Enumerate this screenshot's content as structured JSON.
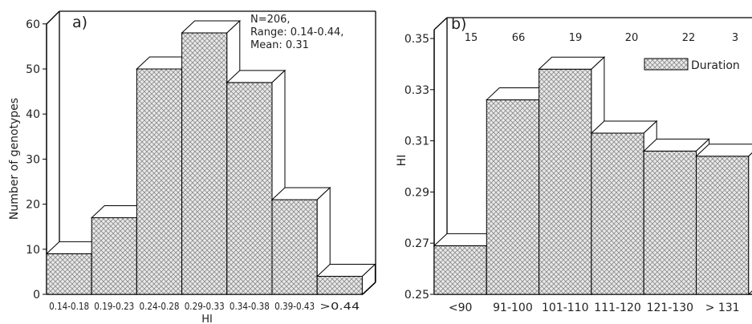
{
  "chart_data": [
    {
      "type": "bar",
      "panel_label": "a)",
      "title": "",
      "xlabel": "HI",
      "ylabel": "Number of genotypes",
      "ylim": [
        0,
        65
      ],
      "yticks": [
        "0",
        "10",
        "20",
        "30",
        "40",
        "50",
        "60"
      ],
      "categories": [
        "0.14-0.18",
        "0.19-0.23",
        "0.24-0.28",
        "0.29-0.33",
        "0.34-0.38",
        "0.39-0.43",
        ">0.44"
      ],
      "values": [
        9,
        17,
        50,
        58,
        47,
        21,
        4
      ],
      "annotation": [
        "N=206,",
        "Range: 0.14-0.44,",
        "Mean: 0.31"
      ],
      "grid": false,
      "style": "3d-bar"
    },
    {
      "type": "bar",
      "panel_label": "b)",
      "title": "",
      "xlabel": "",
      "ylabel": "HI",
      "ylim": [
        0.25,
        0.35
      ],
      "yticks": [
        "0.25",
        "0.27",
        "0.29",
        "0.31",
        "0.33",
        "0.35"
      ],
      "categories": [
        "<90",
        "91-100",
        "101-110",
        "111-120",
        "121-130",
        "> 131"
      ],
      "values": [
        0.269,
        0.326,
        0.338,
        0.313,
        0.306,
        0.304
      ],
      "counts": [
        "15",
        "66",
        "19",
        "20",
        "22",
        "3"
      ],
      "series": [
        {
          "name": "Duration",
          "values": [
            0.269,
            0.326,
            0.338,
            0.313,
            0.306,
            0.304
          ]
        }
      ],
      "legend": {
        "label": "Duration",
        "position": "top-right"
      },
      "grid": false,
      "style": "3d-bar"
    }
  ]
}
